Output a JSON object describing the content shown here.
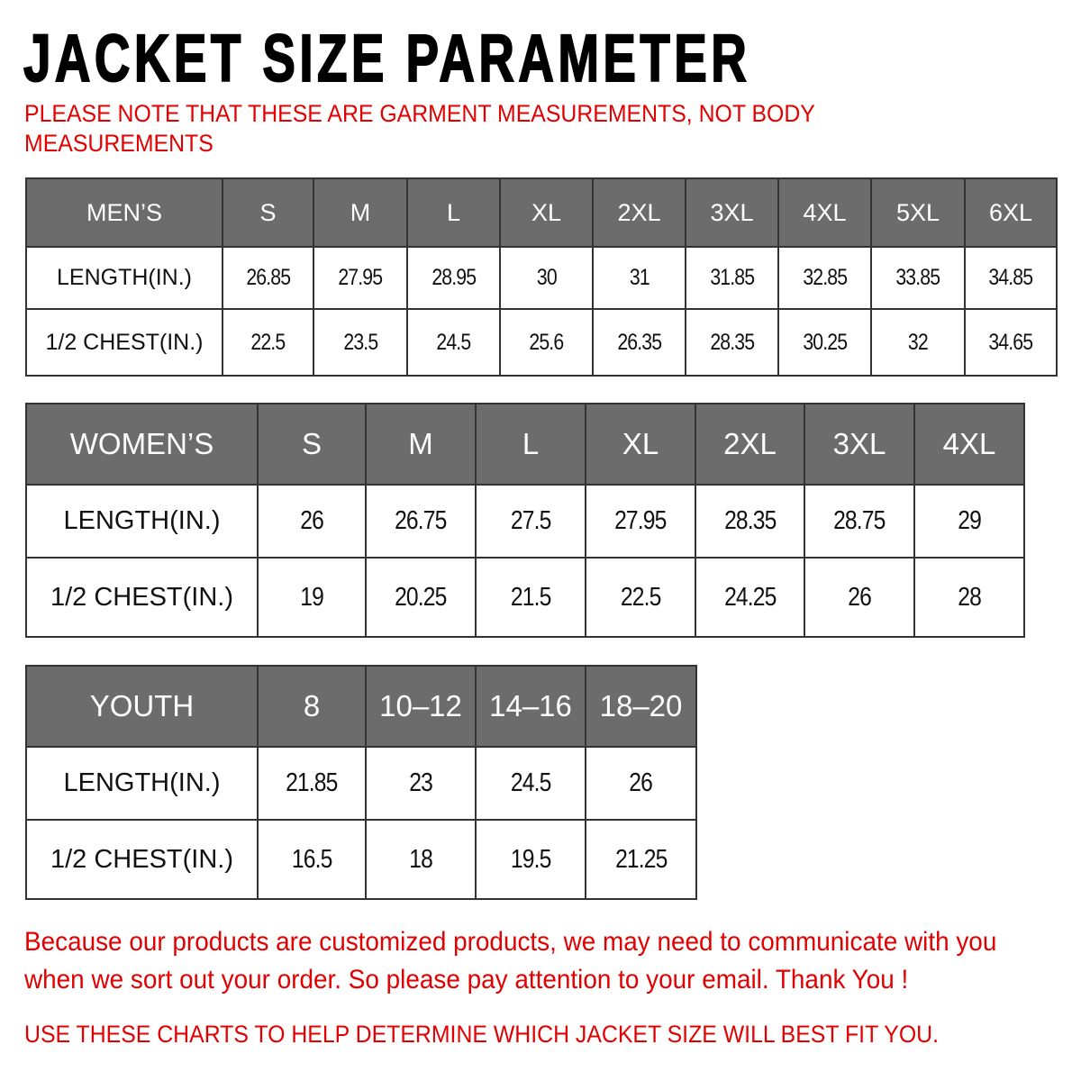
{
  "title": "JACKET SIZE PARAMETER",
  "note_line1": "PLEASE NOTE THAT THESE ARE GARMENT MEASUREMENTS, NOT BODY",
  "note_line2": "MEASUREMENTS",
  "tables": {
    "men": {
      "header": [
        "MEN’S",
        "S",
        "M",
        "L",
        "XL",
        "2XL",
        "3XL",
        "4XL",
        "5XL",
        "6XL"
      ],
      "rows": [
        [
          "LENGTH(IN.)",
          "26.85",
          "27.95",
          "28.95",
          "30",
          "31",
          "31.85",
          "32.85",
          "33.85",
          "34.85"
        ],
        [
          "1/2 CHEST(IN.)",
          "22.5",
          "23.5",
          "24.5",
          "25.6",
          "26.35",
          "28.35",
          "30.25",
          "32",
          "34.65"
        ]
      ]
    },
    "women": {
      "header": [
        "WOMEN’S",
        "S",
        "M",
        "L",
        "XL",
        "2XL",
        "3XL",
        "4XL"
      ],
      "rows": [
        [
          "LENGTH(IN.)",
          "26",
          "26.75",
          "27.5",
          "27.95",
          "28.35",
          "28.75",
          "29"
        ],
        [
          "1/2 CHEST(IN.)",
          "19",
          "20.25",
          "21.5",
          "22.5",
          "24.25",
          "26",
          "28"
        ]
      ]
    },
    "youth": {
      "header": [
        "YOUTH",
        "8",
        "10–12",
        "14–16",
        "18–20"
      ],
      "rows": [
        [
          "LENGTH(IN.)",
          "21.85",
          "23",
          "24.5",
          "26"
        ],
        [
          "1/2 CHEST(IN.)",
          "16.5",
          "18",
          "19.5",
          "21.25"
        ]
      ]
    }
  },
  "footer_line1": "Because our products are customized products, we may need to communicate with you",
  "footer_line2": "when we sort out your order. So please pay attention to your email. Thank You !",
  "footer_line3": "USE THESE CHARTS TO HELP DETERMINE WHICH JACKET SIZE WILL BEST FIT YOU.",
  "colors": {
    "header_bg": "#6c6c6c",
    "accent_red": "#e30000"
  }
}
